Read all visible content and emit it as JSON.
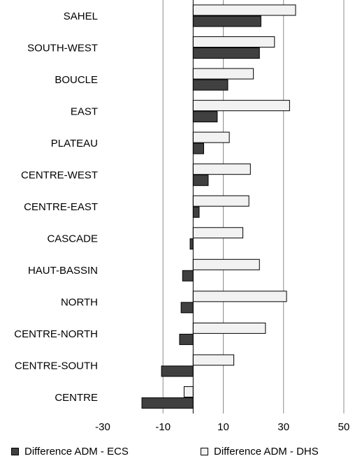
{
  "chart_data": {
    "type": "bar",
    "orientation": "horizontal",
    "categories": [
      "SAHEL",
      "SOUTH-WEST",
      "BOUCLE",
      "EAST",
      "PLATEAU",
      "CENTRE-WEST",
      "CENTRE-EAST",
      "CASCADE",
      "HAUT-BASSIN",
      "NORTH",
      "CENTRE-NORTH",
      "CENTRE-SOUTH",
      "CENTRE"
    ],
    "series": [
      {
        "name": "Difference ADM - DHS",
        "color": "#f2f2f2",
        "values": [
          34,
          27,
          20,
          32,
          12,
          19,
          18.5,
          16.5,
          22,
          31,
          24,
          13.5,
          -3
        ]
      },
      {
        "name": "Difference ADM - ECS",
        "color": "#404040",
        "values": [
          22.5,
          22,
          11.5,
          8,
          3.5,
          5,
          2,
          -1,
          -3.5,
          -4,
          -4.5,
          -10.5,
          -17
        ]
      }
    ],
    "xlim": [
      -30,
      50
    ],
    "xticks": [
      -30,
      -10,
      10,
      30,
      50
    ],
    "grid": true,
    "legend_position": "bottom"
  },
  "legend": {
    "ecs_label": "Difference ADM - ECS",
    "dhs_label": "Difference ADM - DHS"
  }
}
